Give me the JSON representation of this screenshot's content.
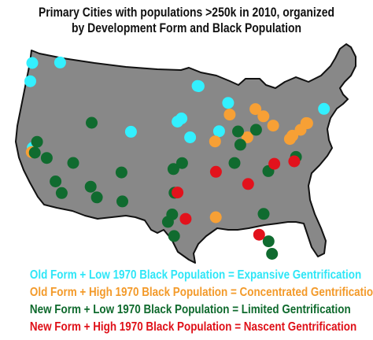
{
  "title": {
    "line1": "Primary Cities with populations >250k in 2010, organized",
    "line2": "by Development Form and Black Population"
  },
  "categories": {
    "expansive": {
      "color": "#33f0ff",
      "label": "Old Form + Low 1970 Black Population = Expansive Gentrification"
    },
    "concentrated": {
      "color": "#f7a035",
      "label": "Old Form + High 1970 Black Population = Concentrated Gentrification"
    },
    "limited": {
      "color": "#106b2f",
      "label": "New Form + Low 1970 Black Population = Limited Gentrification"
    },
    "nascent": {
      "color": "#e2121c",
      "label": "New Form + High 1970 Black Population = Nascent Gentrification"
    }
  },
  "legend_text_colors": {
    "expansive": "#2ee6f7",
    "concentrated": "#f39a2a",
    "limited": "#0f6a2d",
    "nascent": "#df1018"
  },
  "map": {
    "fill": "#888888",
    "stroke": "#111111"
  },
  "cities": [
    {
      "cat": "expansive",
      "lon": -122.33,
      "lat": 47.61
    },
    {
      "cat": "expansive",
      "lon": -122.68,
      "lat": 45.52
    },
    {
      "cat": "expansive",
      "lon": -117.43,
      "lat": 47.66
    },
    {
      "cat": "expansive",
      "lon": -93.27,
      "lat": 44.98
    },
    {
      "cat": "expansive",
      "lon": -93.09,
      "lat": 44.95
    },
    {
      "cat": "expansive",
      "lon": -87.91,
      "lat": 43.04
    },
    {
      "cat": "expansive",
      "lon": -89.5,
      "lat": 39.8
    },
    {
      "cat": "expansive",
      "lon": -94.58,
      "lat": 39.1
    },
    {
      "cat": "expansive",
      "lon": -96.8,
      "lat": 40.9
    },
    {
      "cat": "expansive",
      "lon": -96.1,
      "lat": 41.26
    },
    {
      "cat": "expansive",
      "lon": -104.99,
      "lat": 39.74
    },
    {
      "cat": "expansive",
      "lon": -122.25,
      "lat": 37.9
    },
    {
      "cat": "expansive",
      "lon": -71.06,
      "lat": 42.36
    },
    {
      "cat": "concentrated",
      "lon": -122.42,
      "lat": 37.4
    },
    {
      "cat": "concentrated",
      "lon": -87.63,
      "lat": 41.7
    },
    {
      "cat": "concentrated",
      "lon": -83.1,
      "lat": 42.33
    },
    {
      "cat": "concentrated",
      "lon": -81.69,
      "lat": 41.5
    },
    {
      "cat": "concentrated",
      "lon": -79.99,
      "lat": 40.44
    },
    {
      "cat": "concentrated",
      "lon": -84.51,
      "lat": 39.1
    },
    {
      "cat": "concentrated",
      "lon": -90.2,
      "lat": 38.63
    },
    {
      "cat": "concentrated",
      "lon": -74.01,
      "lat": 40.71
    },
    {
      "cat": "concentrated",
      "lon": -74.17,
      "lat": 40.73
    },
    {
      "cat": "concentrated",
      "lon": -75.16,
      "lat": 39.95
    },
    {
      "cat": "concentrated",
      "lon": -76.61,
      "lat": 39.29
    },
    {
      "cat": "concentrated",
      "lon": -77.04,
      "lat": 38.91
    },
    {
      "cat": "concentrated",
      "lon": -90.07,
      "lat": 29.95
    },
    {
      "cat": "limited",
      "lon": -121.49,
      "lat": 38.58
    },
    {
      "cat": "limited",
      "lon": -121.89,
      "lat": 37.34
    },
    {
      "cat": "limited",
      "lon": -119.79,
      "lat": 36.74
    },
    {
      "cat": "limited",
      "lon": -118.24,
      "lat": 34.05
    },
    {
      "cat": "limited",
      "lon": -117.16,
      "lat": 32.72
    },
    {
      "cat": "limited",
      "lon": -115.14,
      "lat": 36.17
    },
    {
      "cat": "limited",
      "lon": -111.89,
      "lat": 40.76
    },
    {
      "cat": "limited",
      "lon": -112.07,
      "lat": 33.45
    },
    {
      "cat": "limited",
      "lon": -110.97,
      "lat": 32.22
    },
    {
      "cat": "limited",
      "lon": -106.65,
      "lat": 35.08
    },
    {
      "cat": "limited",
      "lon": -106.49,
      "lat": 31.76
    },
    {
      "cat": "limited",
      "lon": -97.52,
      "lat": 35.47
    },
    {
      "cat": "limited",
      "lon": -95.99,
      "lat": 36.15
    },
    {
      "cat": "limited",
      "lon": -97.33,
      "lat": 32.75
    },
    {
      "cat": "limited",
      "lon": -97.74,
      "lat": 30.27
    },
    {
      "cat": "limited",
      "lon": -98.49,
      "lat": 29.42
    },
    {
      "cat": "limited",
      "lon": -97.4,
      "lat": 27.8
    },
    {
      "cat": "limited",
      "lon": -85.76,
      "lat": 38.25
    },
    {
      "cat": "limited",
      "lon": -86.16,
      "lat": 39.77
    },
    {
      "cat": "limited",
      "lon": -83.0,
      "lat": 39.96
    },
    {
      "cat": "limited",
      "lon": -86.78,
      "lat": 36.16
    },
    {
      "cat": "limited",
      "lon": -80.84,
      "lat": 35.23
    },
    {
      "cat": "limited",
      "lon": -75.98,
      "lat": 36.85
    },
    {
      "cat": "limited",
      "lon": -81.66,
      "lat": 30.33
    },
    {
      "cat": "limited",
      "lon": -80.8,
      "lat": 27.2
    },
    {
      "cat": "limited",
      "lon": -80.19,
      "lat": 25.76
    },
    {
      "cat": "nascent",
      "lon": -90.05,
      "lat": 35.15
    },
    {
      "cat": "nascent",
      "lon": -84.39,
      "lat": 33.75
    },
    {
      "cat": "nascent",
      "lon": -79.79,
      "lat": 36.07
    },
    {
      "cat": "nascent",
      "lon": -76.29,
      "lat": 36.35
    },
    {
      "cat": "nascent",
      "lon": -96.8,
      "lat": 32.78
    },
    {
      "cat": "nascent",
      "lon": -95.37,
      "lat": 29.76
    },
    {
      "cat": "nascent",
      "lon": -82.46,
      "lat": 27.95
    }
  ]
}
